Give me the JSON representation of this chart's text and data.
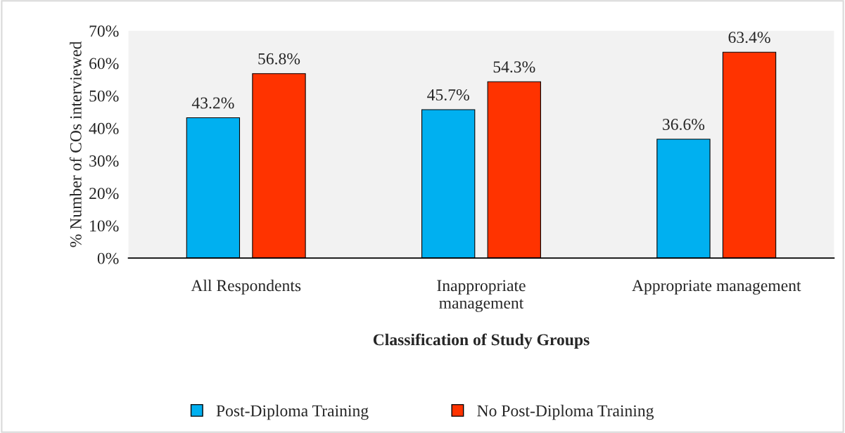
{
  "chart_data": {
    "type": "bar",
    "xlabel": "Classification of Study Groups",
    "ylabel": "% Number of COs interviewed",
    "categories": [
      "All Respondents",
      "Inappropriate\nmanagement",
      "Appropriate management"
    ],
    "series": [
      {
        "name": "Post-Diploma Training",
        "color": "#00b0f0",
        "values": [
          43.2,
          45.7,
          36.6
        ],
        "value_labels": [
          "43.2%",
          "45.7%",
          "36.6%"
        ]
      },
      {
        "name": "No Post-Diploma Training",
        "color": "#ff3300",
        "values": [
          56.8,
          54.3,
          63.4
        ],
        "value_labels": [
          "56.8%",
          "54.3%",
          "63.4%"
        ]
      }
    ],
    "ylim": [
      0,
      70
    ],
    "yticks": [
      {
        "value": 0,
        "label": "0%"
      },
      {
        "value": 10,
        "label": "10%"
      },
      {
        "value": 20,
        "label": "20%"
      },
      {
        "value": 30,
        "label": "30%"
      },
      {
        "value": 40,
        "label": "40%"
      },
      {
        "value": 50,
        "label": "50%"
      },
      {
        "value": 60,
        "label": "60%"
      },
      {
        "value": 70,
        "label": "70%"
      }
    ],
    "grid": false,
    "legend": "bottom"
  }
}
